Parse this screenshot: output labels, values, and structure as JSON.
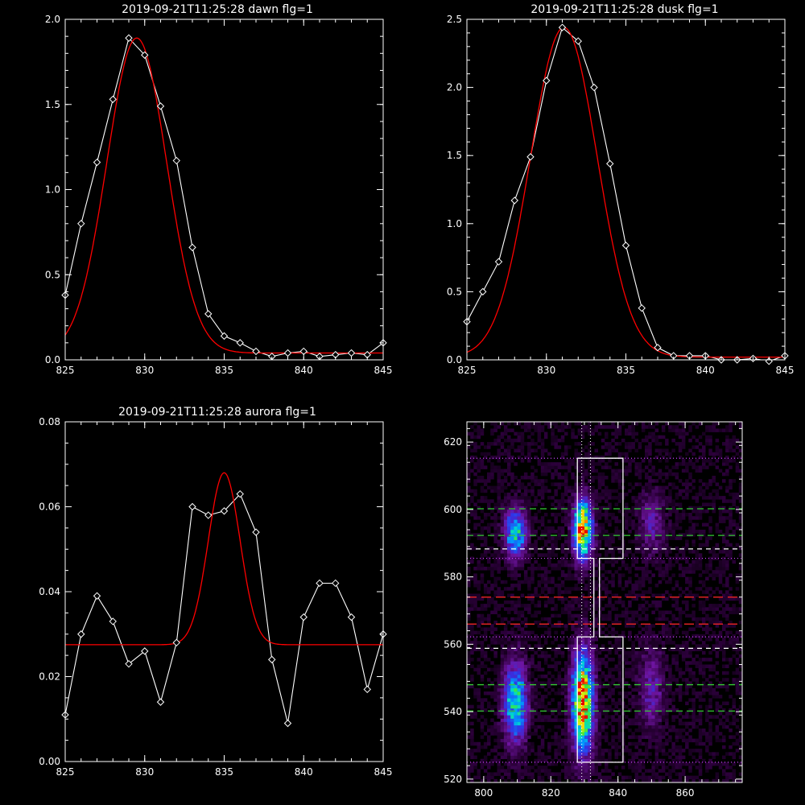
{
  "colors": {
    "background": "#000000",
    "axes": "#ffffff",
    "data": "#ffffff",
    "fit": "#ff0000",
    "green_line": "#33cc33",
    "red_line": "#dd2222",
    "magenta": "#cc44ff"
  },
  "chart_data": [
    {
      "type": "line",
      "title": "2019-09-21T11:25:28 dawn flg=1",
      "xlim": [
        825,
        845
      ],
      "ylim": [
        0,
        2.0
      ],
      "xticks": [
        825,
        830,
        835,
        840,
        845
      ],
      "yticks": [
        0.0,
        0.5,
        1.0,
        1.5,
        2.0
      ],
      "ytick_labels": [
        "0.0",
        "0.5",
        "1.0",
        "1.5",
        "2.0"
      ],
      "series": [
        {
          "style": "white-diamonds",
          "x": [
            825,
            826,
            827,
            828,
            829,
            830,
            831,
            832,
            833,
            834,
            835,
            836,
            837,
            838,
            839,
            840,
            841,
            842,
            843,
            844,
            845
          ],
          "y": [
            0.38,
            0.8,
            1.16,
            1.53,
            1.89,
            1.79,
            1.49,
            1.17,
            0.66,
            0.27,
            0.14,
            0.1,
            0.05,
            0.02,
            0.04,
            0.05,
            0.02,
            0.03,
            0.04,
            0.03,
            0.1
          ]
        },
        {
          "style": "red-fit",
          "model": "gaussian",
          "amp": 1.85,
          "center": 829.5,
          "sigma": 1.88,
          "offset": 0.04
        }
      ]
    },
    {
      "type": "line",
      "title": "2019-09-21T11:25:28 dusk flg=1",
      "xlim": [
        825,
        845
      ],
      "ylim": [
        0,
        2.5
      ],
      "xticks": [
        825,
        830,
        835,
        840,
        845
      ],
      "yticks": [
        0.0,
        0.5,
        1.0,
        1.5,
        2.0,
        2.5
      ],
      "ytick_labels": [
        "0.0",
        "0.5",
        "1.0",
        "1.5",
        "2.0",
        "2.5"
      ],
      "series": [
        {
          "style": "white-diamonds",
          "x": [
            825,
            826,
            827,
            828,
            829,
            830,
            831,
            832,
            833,
            834,
            835,
            836,
            837,
            838,
            839,
            840,
            841,
            842,
            843,
            844,
            845
          ],
          "y": [
            0.28,
            0.5,
            0.72,
            1.17,
            1.49,
            2.05,
            2.44,
            2.34,
            2.0,
            1.44,
            0.84,
            0.38,
            0.09,
            0.03,
            0.03,
            0.03,
            0.0,
            0.0,
            0.01,
            -0.01,
            0.03
          ]
        },
        {
          "style": "red-fit",
          "model": "gaussian",
          "amp": 2.42,
          "center": 831.1,
          "sigma": 2.1,
          "offset": 0.02
        }
      ]
    },
    {
      "type": "line",
      "title": "2019-09-21T11:25:28 aurora flg=1",
      "xlim": [
        825,
        845
      ],
      "ylim": [
        0,
        0.08
      ],
      "xticks": [
        825,
        830,
        835,
        840,
        845
      ],
      "yticks": [
        0.0,
        0.02,
        0.04,
        0.06,
        0.08
      ],
      "ytick_labels": [
        "0.00",
        "0.02",
        "0.04",
        "0.06",
        "0.08"
      ],
      "series": [
        {
          "style": "white-diamonds",
          "x": [
            825,
            826,
            827,
            828,
            829,
            830,
            831,
            832,
            833,
            834,
            835,
            836,
            837,
            838,
            839,
            840,
            841,
            842,
            843,
            844,
            845
          ],
          "y": [
            0.011,
            0.03,
            0.039,
            0.033,
            0.023,
            0.026,
            0.014,
            0.028,
            0.06,
            0.058,
            0.059,
            0.063,
            0.054,
            0.024,
            0.009,
            0.034,
            0.042,
            0.042,
            0.034,
            0.017,
            0.03
          ]
        },
        {
          "style": "red-fit",
          "model": "gaussian",
          "amp": 0.0405,
          "center": 835.0,
          "sigma": 1.0,
          "offset": 0.0275
        }
      ]
    },
    {
      "type": "heatmap",
      "xlim": [
        795,
        877
      ],
      "ylim": [
        519,
        626
      ],
      "xticks": [
        800,
        820,
        840,
        860
      ],
      "yticks": [
        520,
        540,
        560,
        580,
        600,
        620
      ],
      "blobs": [
        {
          "x": 809.5,
          "y": 593,
          "sx": 2.2,
          "sy": 5,
          "amp": 0.6
        },
        {
          "x": 809.5,
          "y": 543,
          "sx": 2.4,
          "sy": 8,
          "amp": 0.65
        },
        {
          "x": 829.5,
          "y": 594,
          "sx": 2.0,
          "sy": 6,
          "amp": 0.95
        },
        {
          "x": 829.5,
          "y": 543,
          "sx": 2.2,
          "sy": 10,
          "amp": 1.0
        },
        {
          "x": 850,
          "y": 596,
          "sx": 2.5,
          "sy": 6,
          "amp": 0.25
        },
        {
          "x": 850,
          "y": 547,
          "sx": 2.5,
          "sy": 8,
          "amp": 0.25
        }
      ],
      "hlines": [
        {
          "y": 615.2,
          "style": "magenta-dotted"
        },
        {
          "y": 585.5,
          "style": "magenta-dotted"
        },
        {
          "y": 562.2,
          "style": "magenta-dotted"
        },
        {
          "y": 525,
          "style": "magenta-dotted"
        },
        {
          "y": 600.2,
          "style": "green-dashed"
        },
        {
          "y": 592.3,
          "style": "green-dashed"
        },
        {
          "y": 588.3,
          "style": "white-dashed"
        },
        {
          "y": 574,
          "style": "red-dashed"
        },
        {
          "y": 566,
          "style": "red-dashed"
        },
        {
          "y": 558.8,
          "style": "white-dashed"
        },
        {
          "y": 548,
          "style": "green-dashed"
        },
        {
          "y": 540.2,
          "style": "green-dashed"
        }
      ],
      "vlines": [
        {
          "x": 829.2,
          "style": "white-dotted"
        },
        {
          "x": 831.8,
          "style": "white-dotted"
        }
      ],
      "outline": [
        [
          827.9,
          615.2
        ],
        [
          841.5,
          615.2
        ],
        [
          841.5,
          585.5
        ],
        [
          834.5,
          585.5
        ],
        [
          834.5,
          562.2
        ],
        [
          841.5,
          562.2
        ],
        [
          841.5,
          525
        ],
        [
          827.9,
          525
        ],
        [
          827.9,
          562.2
        ],
        [
          832.8,
          562.2
        ],
        [
          832.8,
          585.5
        ],
        [
          827.9,
          585.5
        ],
        [
          827.9,
          615.2
        ]
      ]
    }
  ]
}
